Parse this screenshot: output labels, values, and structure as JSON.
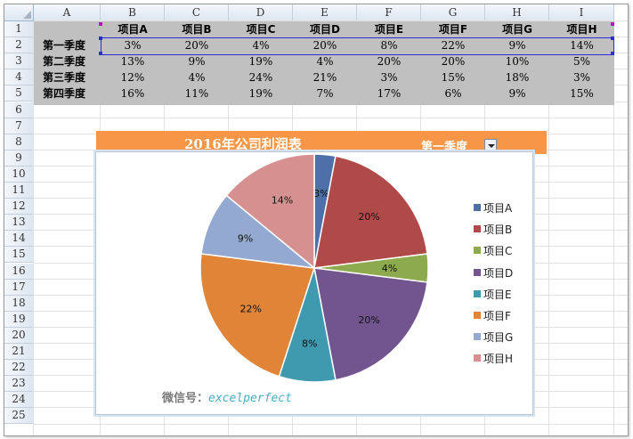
{
  "columns": [
    "A",
    "B",
    "C",
    "D",
    "E",
    "F",
    "G",
    "H",
    "I"
  ],
  "rows": [
    "1",
    "2",
    "3",
    "4",
    "5",
    "6",
    "7",
    "8",
    "9",
    "10",
    "11",
    "12",
    "13",
    "14",
    "15",
    "16",
    "17",
    "18",
    "19",
    "20",
    "21",
    "22",
    "23",
    "24",
    "25"
  ],
  "header_row": [
    "项目A",
    "项目B",
    "项目C",
    "项目D",
    "项目E",
    "项目F",
    "项目G",
    "项目H"
  ],
  "data_rows": [
    {
      "label": "第一季度",
      "values": [
        "3%",
        "20%",
        "4%",
        "20%",
        "8%",
        "22%",
        "9%",
        "14%"
      ]
    },
    {
      "label": "第二季度",
      "values": [
        "13%",
        "9%",
        "19%",
        "4%",
        "20%",
        "20%",
        "10%",
        "5%"
      ]
    },
    {
      "label": "第三季度",
      "values": [
        "12%",
        "4%",
        "24%",
        "21%",
        "3%",
        "15%",
        "18%",
        "3%"
      ]
    },
    {
      "label": "第四季度",
      "values": [
        "16%",
        "11%",
        "19%",
        "7%",
        "17%",
        "6%",
        "9%",
        "15%"
      ]
    }
  ],
  "chart_title": "2016年公司利润表",
  "dropdown": {
    "selected": "第一季度"
  },
  "watermark": {
    "prefix": "微信号：",
    "account": "excelperfect"
  },
  "colors": {
    "title_bar": "#f79646",
    "table_fill": "#c0c0c0"
  },
  "chart_data": {
    "type": "pie",
    "categories": [
      "项目A",
      "项目B",
      "项目C",
      "项目D",
      "项目E",
      "项目F",
      "项目G",
      "项目H"
    ],
    "values": [
      3,
      20,
      4,
      20,
      8,
      22,
      9,
      14
    ],
    "labels": [
      "3%",
      "20%",
      "4%",
      "20%",
      "8%",
      "22%",
      "9%",
      "14%"
    ],
    "colors": [
      "#4f6fa9",
      "#b04a48",
      "#8eaa4f",
      "#72558f",
      "#3f9ab0",
      "#e08437",
      "#93a9d1",
      "#d69090"
    ],
    "legend_position": "right"
  }
}
